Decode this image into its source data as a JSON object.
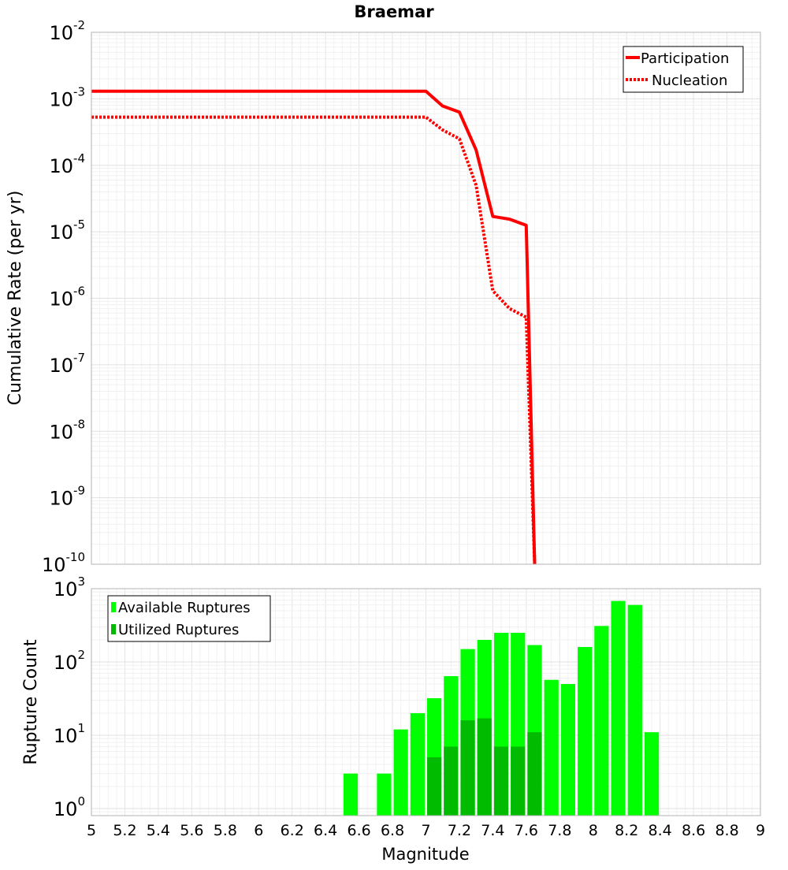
{
  "chart_data": [
    {
      "type": "line",
      "title": "Braemar",
      "ylabel": "Cumulative Rate (per yr)",
      "xlabel": "",
      "yscale": "log",
      "xlim": [
        5,
        9
      ],
      "ylim": [
        1e-10,
        0.01
      ],
      "y_ticks": [
        {
          "base": "10",
          "exp": "-2",
          "value": 0.01
        },
        {
          "base": "10",
          "exp": "-3",
          "value": 0.001
        },
        {
          "base": "10",
          "exp": "-4",
          "value": 0.0001
        },
        {
          "base": "10",
          "exp": "-5",
          "value": 1e-05
        },
        {
          "base": "10",
          "exp": "-6",
          "value": 1e-06
        },
        {
          "base": "10",
          "exp": "-7",
          "value": 1e-07
        },
        {
          "base": "10",
          "exp": "-8",
          "value": 1e-08
        },
        {
          "base": "10",
          "exp": "-9",
          "value": 1e-09
        },
        {
          "base": "10",
          "exp": "-10",
          "value": 1e-10
        }
      ],
      "legend": {
        "position": "top-right"
      },
      "series": [
        {
          "name": "Participation",
          "style": "solid",
          "color": "#ff0000",
          "x": [
            5.0,
            7.0,
            7.1,
            7.2,
            7.3,
            7.4,
            7.5,
            7.6,
            7.65
          ],
          "y": [
            0.0013,
            0.0013,
            0.00078,
            0.00063,
            0.00017,
            1.7e-05,
            1.55e-05,
            1.25e-05,
            1e-10
          ]
        },
        {
          "name": "Nucleation",
          "style": "dotted",
          "color": "#ff0000",
          "x": [
            5.0,
            7.0,
            7.1,
            7.2,
            7.3,
            7.4,
            7.5,
            7.6,
            7.65
          ],
          "y": [
            0.00053,
            0.00053,
            0.00034,
            0.00025,
            5e-05,
            1.3e-06,
            7e-07,
            5.2e-07,
            1e-10
          ]
        }
      ]
    },
    {
      "type": "bar",
      "title": "",
      "ylabel": "Rupture Count",
      "xlabel": "Magnitude",
      "yscale": "log",
      "xlim": [
        5,
        9
      ],
      "ylim": [
        0.8,
        1000
      ],
      "bar_width": 0.1,
      "y_ticks": [
        {
          "base": "10",
          "exp": "3",
          "value": 1000
        },
        {
          "base": "10",
          "exp": "2",
          "value": 100
        },
        {
          "base": "10",
          "exp": "1",
          "value": 10
        },
        {
          "base": "10",
          "exp": "0",
          "value": 1
        }
      ],
      "x_ticks": [
        "5",
        "5.2",
        "5.4",
        "5.6",
        "5.8",
        "6",
        "6.2",
        "6.4",
        "6.6",
        "6.8",
        "7",
        "7.2",
        "7.4",
        "7.6",
        "7.8",
        "8",
        "8.2",
        "8.4",
        "8.6",
        "8.8",
        "9"
      ],
      "legend": {
        "position": "top-left"
      },
      "series": [
        {
          "name": "Available Ruptures",
          "color": "#00ff00",
          "x": [
            6.55,
            6.75,
            6.85,
            6.95,
            7.05,
            7.15,
            7.25,
            7.35,
            7.45,
            7.55,
            7.65,
            7.75,
            7.85,
            7.95,
            8.05,
            8.15,
            8.25,
            8.35
          ],
          "values": [
            3,
            3,
            12,
            20,
            32,
            64,
            150,
            200,
            250,
            250,
            170,
            57,
            50,
            160,
            310,
            680,
            600,
            11
          ]
        },
        {
          "name": "Utilized Ruptures",
          "color": "#00bb00",
          "x": [
            7.05,
            7.15,
            7.25,
            7.35,
            7.45,
            7.55,
            7.65
          ],
          "values": [
            5,
            7,
            16,
            17,
            7,
            7,
            11
          ]
        }
      ]
    }
  ]
}
